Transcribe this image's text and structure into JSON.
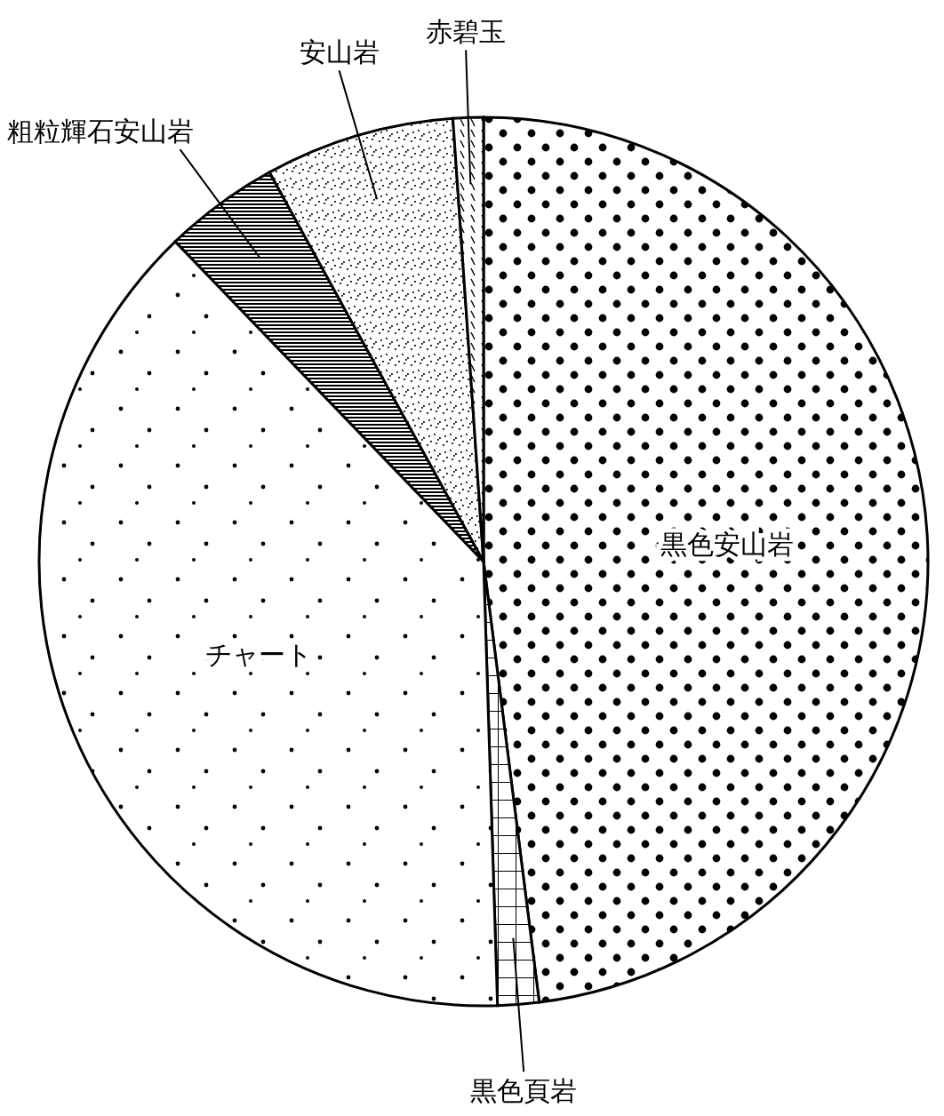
{
  "chart_data": {
    "type": "pie",
    "categories": [
      "黒色安山岩",
      "黒色頁岩",
      "チャート",
      "粗粒輝石安山岩",
      "安山岩",
      "赤碧玉"
    ],
    "values": [
      48.0,
      1.5,
      38.3,
      4.2,
      6.9,
      1.1
    ],
    "colors": [
      "#000000",
      "#000000",
      "#000000",
      "#000000",
      "#000000",
      "#000000"
    ]
  }
}
